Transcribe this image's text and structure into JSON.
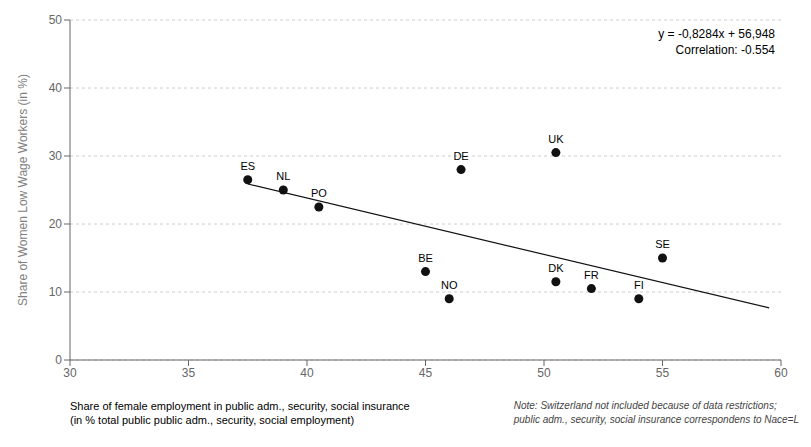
{
  "chart_data": {
    "type": "scatter",
    "xlabel": "Share of female employment in public adm., security, social insurance\n(in % total public public adm., security, social employment)",
    "ylabel": "Share of Women Low Wage Workers (in %)",
    "xlim": [
      30,
      60
    ],
    "ylim": [
      0,
      50
    ],
    "xticks": [
      30,
      35,
      40,
      45,
      50,
      55,
      60
    ],
    "yticks": [
      0,
      10,
      20,
      30,
      40,
      50
    ],
    "grid": "y",
    "annotations": [
      "y = -0,8284x + 56,948\nCorrelation: -0.554",
      "Note: Switzerland not included because of data restrictions;\npublic adm., security, social insurance correspondens to Nace=L"
    ],
    "series": [
      {
        "type": "scatter",
        "color": "#111111",
        "labels": [
          "ES",
          "NL",
          "PO",
          "DE",
          "BE",
          "NO",
          "DK",
          "UK",
          "FR",
          "FI",
          "SE"
        ],
        "x": [
          37.5,
          39.0,
          40.5,
          46.5,
          45.0,
          46.0,
          50.5,
          50.5,
          52.0,
          54.0,
          55.0
        ],
        "values": [
          26.5,
          25.0,
          22.5,
          28.0,
          13.0,
          9.0,
          11.5,
          30.5,
          10.5,
          9.0,
          15.0
        ]
      },
      {
        "type": "line",
        "color": "#111111",
        "x": [
          37.5,
          59.5
        ],
        "values": [
          25.883,
          7.6582
        ]
      }
    ]
  }
}
